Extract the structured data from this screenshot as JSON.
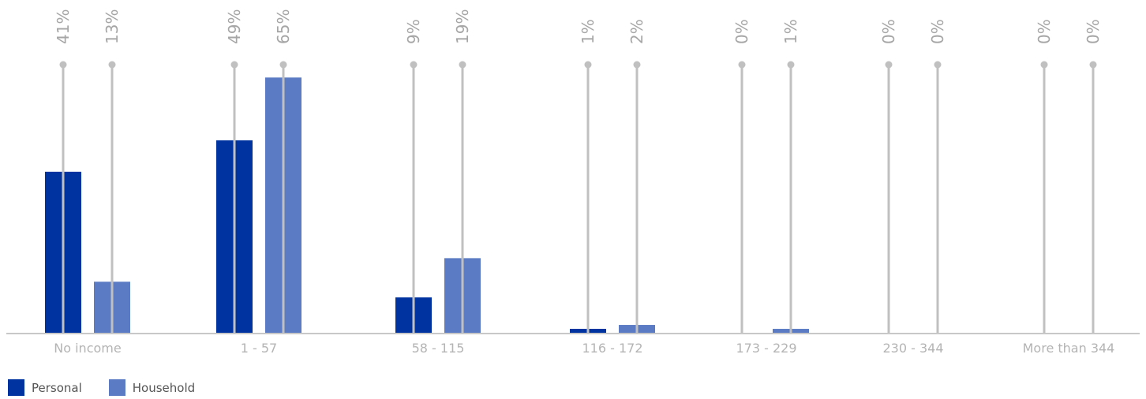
{
  "chart_data": {
    "type": "bar",
    "categories": [
      "No income",
      "1 - 57",
      "58 - 115",
      "116 - 172",
      "173 - 229",
      "230 - 344",
      "More than 344"
    ],
    "series": [
      {
        "name": "Personal",
        "values": [
          41,
          49,
          9,
          1,
          0,
          0,
          0
        ],
        "labels": [
          "41%",
          "49%",
          "9%",
          "1%",
          "0%",
          "0%",
          "0%"
        ],
        "color": "#0033a0"
      },
      {
        "name": "Household",
        "values": [
          13,
          65,
          19,
          2,
          1,
          0,
          0
        ],
        "labels": [
          "13%",
          "65%",
          "19%",
          "2%",
          "1%",
          "0%",
          "0%"
        ],
        "color": "#5b7cc4"
      }
    ],
    "legend": "bottom-left",
    "stem_color": "#c0c0c0",
    "axis_color": "#c8c8c8",
    "grid": false
  }
}
